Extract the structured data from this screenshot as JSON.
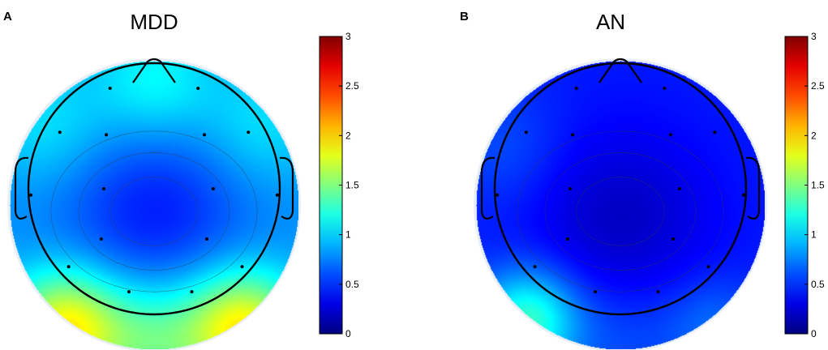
{
  "chart_data": [
    {
      "type": "heatmap",
      "panel": "A",
      "title": "MDD",
      "colorbar": {
        "min": 0,
        "max": 3,
        "ticks": [
          "0",
          "0.5",
          "1",
          "1.5",
          "2",
          "2.5",
          "3"
        ],
        "colormap": "jet"
      },
      "background_value": 0.8,
      "blobs": [
        {
          "u": 0.0,
          "v": 0.05,
          "value": -0.35,
          "s": 0.45
        },
        {
          "u": -0.62,
          "v": 0.85,
          "value": 1.1,
          "s": 0.28
        },
        {
          "u": 0.62,
          "v": 0.85,
          "value": 1.1,
          "s": 0.28
        },
        {
          "u": 0.0,
          "v": 0.95,
          "value": 0.55,
          "s": 0.3
        },
        {
          "u": -0.75,
          "v": -0.55,
          "value": 0.25,
          "s": 0.3
        },
        {
          "u": 0.75,
          "v": -0.55,
          "value": 0.25,
          "s": 0.3
        },
        {
          "u": 0.0,
          "v": -0.85,
          "value": 0.35,
          "s": 0.3
        }
      ]
    },
    {
      "type": "heatmap",
      "panel": "B",
      "title": "AN",
      "colorbar": {
        "min": 0,
        "max": 3,
        "ticks": [
          "0",
          "0.5",
          "1",
          "1.5",
          "2",
          "2.5",
          "3"
        ],
        "colormap": "jet"
      },
      "background_value": 0.45,
      "blobs": [
        {
          "u": 0.0,
          "v": 0.1,
          "value": -0.25,
          "s": 0.45
        },
        {
          "u": -0.65,
          "v": 0.8,
          "value": 0.85,
          "s": 0.25
        },
        {
          "u": 0.65,
          "v": 0.85,
          "value": 0.25,
          "s": 0.25
        },
        {
          "u": 0.0,
          "v": 0.95,
          "value": 0.15,
          "s": 0.3
        },
        {
          "u": -0.8,
          "v": -0.4,
          "value": 0.15,
          "s": 0.3
        }
      ]
    }
  ],
  "electrodes": [
    [
      -0.35,
      -0.8
    ],
    [
      0.35,
      -0.8
    ],
    [
      -0.75,
      -0.45
    ],
    [
      -0.38,
      -0.43
    ],
    [
      0.4,
      -0.43
    ],
    [
      0.75,
      -0.45
    ],
    [
      -0.4,
      0.0
    ],
    [
      0.47,
      0.0
    ],
    [
      -0.42,
      0.4
    ],
    [
      0.42,
      0.4
    ],
    [
      -0.68,
      0.62
    ],
    [
      0.7,
      0.62
    ],
    [
      -0.2,
      0.82
    ],
    [
      0.3,
      0.82
    ],
    [
      -0.98,
      0.05
    ],
    [
      0.98,
      0.05
    ]
  ]
}
